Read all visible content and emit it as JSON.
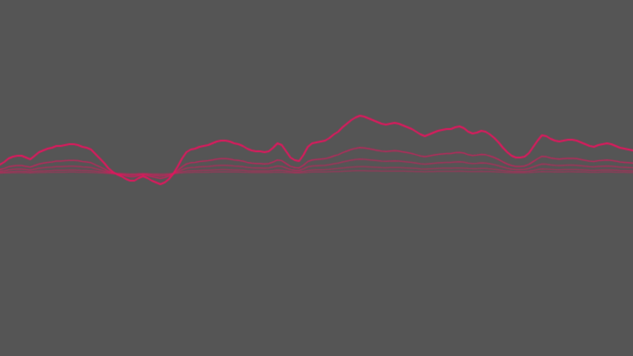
{
  "visualizer": {
    "background_color": "#555555",
    "line_color": "#E0185E",
    "line_opacities": [
      1.0,
      0.7,
      0.55,
      0.45,
      0.4
    ],
    "amplitude_scale": [
      1.0,
      0.45,
      0.25,
      0.12,
      0.05
    ],
    "samples": [
      10,
      13,
      17,
      19,
      20,
      20,
      18,
      16,
      20,
      24,
      26,
      28,
      29,
      31,
      31,
      32,
      33,
      33,
      32,
      30,
      29,
      27,
      22,
      17,
      12,
      6,
      2,
      -1,
      -3,
      -6,
      -8,
      -8,
      -5,
      -3,
      -5,
      -8,
      -10,
      -12,
      -10,
      -6,
      0,
      8,
      17,
      24,
      27,
      28,
      30,
      31,
      32,
      34,
      36,
      37,
      37,
      36,
      34,
      33,
      31,
      28,
      26,
      25,
      25,
      24,
      25,
      29,
      34,
      32,
      25,
      18,
      15,
      14,
      21,
      30,
      34,
      35,
      36,
      37,
      40,
      44,
      47,
      52,
      56,
      60,
      63,
      65,
      64,
      62,
      60,
      58,
      56,
      55,
      56,
      57,
      56,
      54,
      52,
      50,
      47,
      44,
      42,
      44,
      46,
      48,
      49,
      50,
      50,
      52,
      53,
      51,
      47,
      45,
      46,
      48,
      47,
      44,
      40,
      35,
      29,
      24,
      20,
      18,
      18,
      19,
      23,
      30,
      37,
      43,
      42,
      39,
      37,
      36,
      37,
      38,
      38,
      37,
      35,
      33,
      31,
      30,
      32,
      33,
      34,
      33,
      31,
      29,
      28,
      27,
      26
    ]
  }
}
